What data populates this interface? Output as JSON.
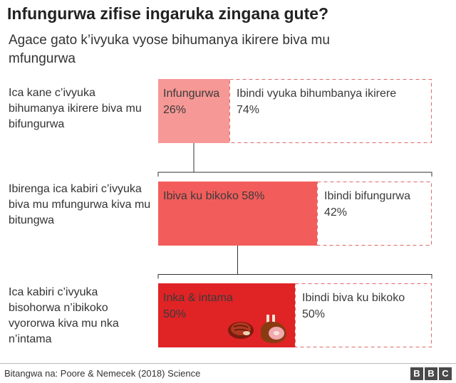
{
  "title": "Infungurwa zifise ingaruka zingana gute?",
  "subtitle": "Agace gato k’ivyuka vyose bihumanya ikirere biva mu mfungurwa",
  "source": "Bitangwa na: Poore & Nemecek (2018) Science",
  "logo": [
    "B",
    "B",
    "C"
  ],
  "colors": {
    "level1": "#f69895",
    "level2": "#f25d5b",
    "level3": "#e02325",
    "remainder_border": "#e06a6a",
    "connector": "#333333"
  },
  "icons": [
    "steak-icon",
    "ham-icon"
  ],
  "chart_data": {
    "type": "bar",
    "orientation": "horizontal",
    "stacked": true,
    "unit": "%",
    "xlim": [
      0,
      100
    ],
    "rows": [
      {
        "label": "Ica kane c’ivyuka bihumanya ikirere biva mu bifungurwa",
        "segments": [
          {
            "name": "Infungurwa",
            "value": 26,
            "display": "26%"
          },
          {
            "name": "Ibindi vyuka bihumbanya ikirere",
            "value": 74,
            "display": "74%"
          }
        ]
      },
      {
        "label": "Ibirenga ica kabiri c’ivyuka biva mu mfungurwa kiva mu bitungwa",
        "segments": [
          {
            "name": "Ibiva ku bikoko 58%",
            "value": 58,
            "display": ""
          },
          {
            "name": "Ibindi bifungurwa",
            "value": 42,
            "display": "42%"
          }
        ]
      },
      {
        "label": "Ica kabiri c’ivyuka bisohorwa n’ibikoko vyororwa kiva mu nka n’intama",
        "segments": [
          {
            "name": "Inka & intama",
            "value": 50,
            "display": "50%"
          },
          {
            "name": "Ibindi biva ku bikoko",
            "value": 50,
            "display": "50%"
          }
        ]
      }
    ]
  }
}
